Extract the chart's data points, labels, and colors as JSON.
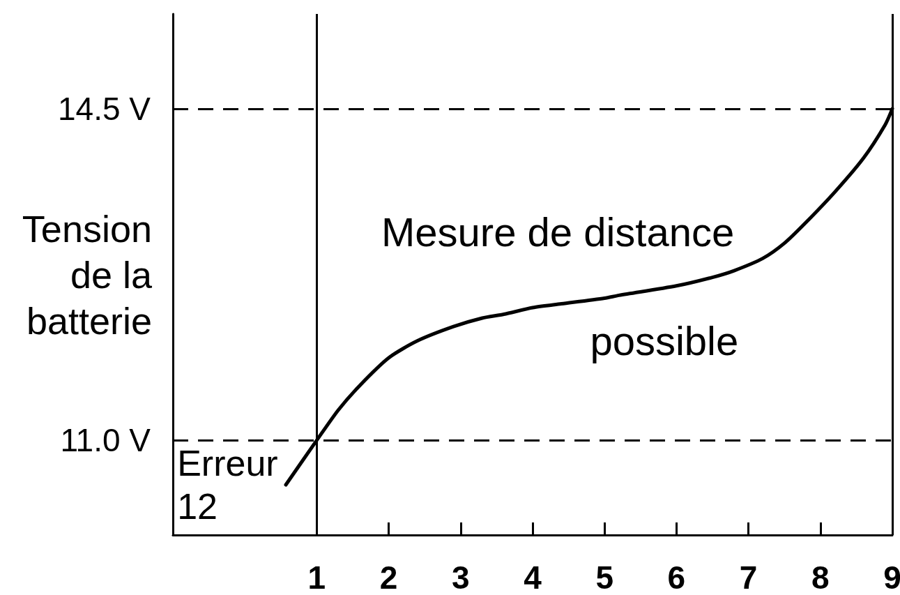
{
  "chart_data": {
    "type": "line",
    "ylabel": "Tension de la batterie",
    "annotations": [
      "Mesure de distance",
      "possible",
      "Erreur 12"
    ],
    "x": [
      0.57,
      1.0,
      1.3,
      1.6,
      2.0,
      2.4,
      2.9,
      3.3,
      3.6,
      4.0,
      4.4,
      5.0,
      5.2,
      6.0,
      6.5,
      6.8,
      7.2,
      7.5,
      7.8,
      8.2,
      8.6,
      8.9,
      9.0
    ],
    "series": [
      {
        "color": "#000000",
        "values": [
          10.53,
          11.0,
          11.32,
          11.58,
          11.87,
          12.05,
          12.2,
          12.29,
          12.33,
          12.4,
          12.44,
          12.5,
          12.53,
          12.63,
          12.72,
          12.79,
          12.92,
          13.08,
          13.3,
          13.62,
          13.98,
          14.33,
          14.5
        ]
      }
    ],
    "xlim": [
      -1,
      9
    ],
    "ylim": [
      10,
      15.5
    ],
    "xticks": [
      1,
      2,
      3,
      4,
      5,
      6,
      7,
      8,
      9
    ],
    "yticks": [
      {
        "value": 11,
        "label": "11.0 V"
      },
      {
        "value": 14.5,
        "label": "14.5 V"
      }
    ],
    "ref_lines": [
      {
        "axis": "y",
        "value": 14.5,
        "line_style": "dashed",
        "color": "#000000"
      },
      {
        "axis": "y",
        "value": 11.0,
        "line_style": "dashed",
        "color": "#000000"
      },
      {
        "axis": "x",
        "value": 1,
        "color": "#000000"
      },
      {
        "axis": "x",
        "value": 9,
        "color": "#000000"
      }
    ],
    "grid": false,
    "marker": "none"
  }
}
